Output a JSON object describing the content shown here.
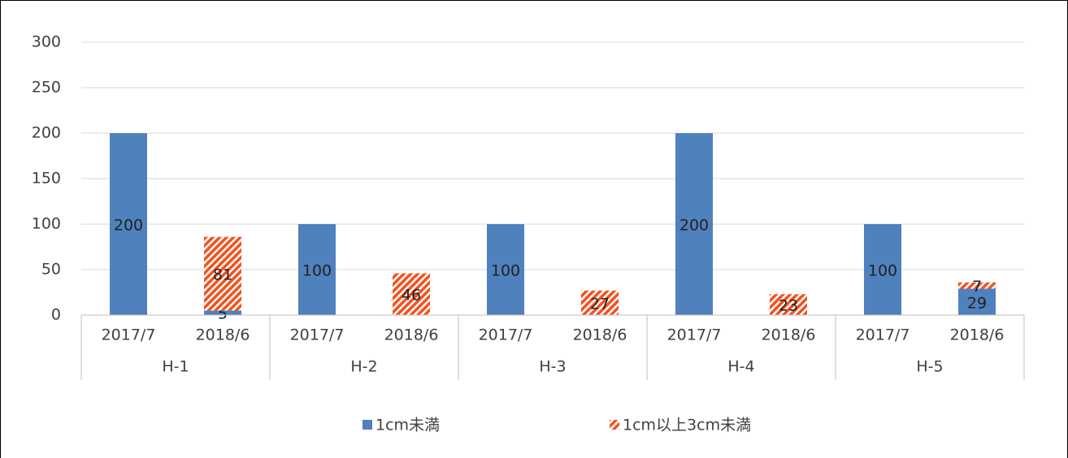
{
  "chart_data": {
    "type": "stacked_bar",
    "categories": [
      "2017/7",
      "2018/6",
      "2017/7",
      "2018/6",
      "2017/7",
      "2018/6",
      "2017/7",
      "2018/6",
      "2017/7",
      "2018/6"
    ],
    "groups": [
      "H-1",
      "H-2",
      "H-3",
      "H-4",
      "H-5"
    ],
    "series": [
      {
        "name": "1cm未満",
        "color": "#4f81bd",
        "values": [
          200,
          5,
          100,
          null,
          100,
          null,
          200,
          null,
          100,
          29
        ]
      },
      {
        "name": "1cm以上3cm未満",
        "color": "#f4511e",
        "pattern": "hatch",
        "values": [
          null,
          81,
          null,
          46,
          null,
          27,
          null,
          23,
          null,
          7
        ]
      }
    ],
    "ylim": [
      0,
      300
    ],
    "yticks": [
      0,
      50,
      100,
      150,
      200,
      250,
      300
    ],
    "grid": true,
    "legend": "bottom"
  }
}
